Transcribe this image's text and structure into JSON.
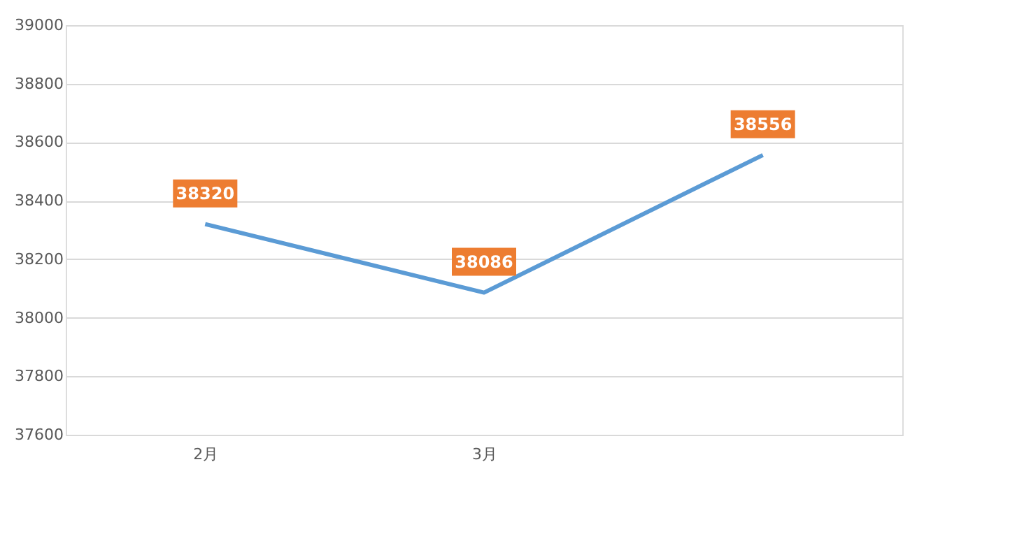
{
  "chart_data": {
    "type": "line",
    "categories": [
      "2月",
      "3月",
      null
    ],
    "series": [
      {
        "color": "#5b9bd5",
        "values": [
          38320,
          38086,
          38556
        ]
      }
    ],
    "ylim": [
      37600,
      39000
    ],
    "yticks": [
      37600,
      37800,
      38000,
      38200,
      38400,
      38600,
      38800,
      39000
    ],
    "grid": "y",
    "data_labels": true,
    "marker": "none",
    "line_style": "solid"
  }
}
